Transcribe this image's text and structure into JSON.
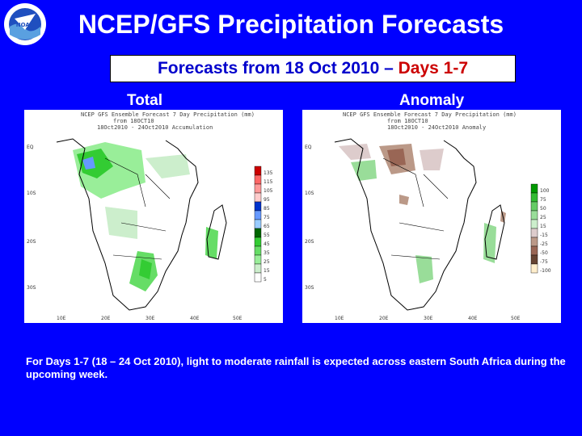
{
  "slide": {
    "title": "NCEP/GFS Precipitation Forecasts",
    "subtitle_prefix": "Forecasts from 18 Oct 2010 – ",
    "subtitle_highlight": "Days 1-7",
    "caption": "For Days 1-7 (18 – 24 Oct 2010), light to moderate rainfall is expected across eastern South Africa during the upcoming week.",
    "logo_text": "NOAA"
  },
  "panels": {
    "total": {
      "label": "Total",
      "map_title_1": "NCEP GFS Ensemble Forecast 7 Day Precipitation (mm)",
      "map_title_2": "from 18OCT10",
      "map_title_3": "18Oct2010 - 24Oct2010 Accumulation",
      "legend": [
        "135",
        "115",
        "105",
        "95",
        "85",
        "75",
        "65",
        "55",
        "45",
        "35",
        "25",
        "15",
        "5"
      ],
      "legend_colors": [
        "#cc0000",
        "#ff6666",
        "#ff9999",
        "#ffcccc",
        "#0033cc",
        "#6699ff",
        "#99ccff",
        "#006600",
        "#33cc33",
        "#66dd66",
        "#99ee99",
        "#cceecc",
        "#ffffff"
      ]
    },
    "anomaly": {
      "label": "Anomaly",
      "map_title_1": "NCEP GFS Ensemble Forecast 7 Day Precipitation (mm)",
      "map_title_2": "from 18OCT10",
      "map_title_3": "18Oct2010 - 24Oct2010 Anomaly",
      "legend": [
        "100",
        "75",
        "50",
        "25",
        "15",
        "-15",
        "-25",
        "-50",
        "-75",
        "-100"
      ],
      "legend_colors": [
        "#009900",
        "#33bb33",
        "#66cc66",
        "#99dd99",
        "#cceecc",
        "#ddcccc",
        "#bb9988",
        "#996655",
        "#664433",
        "#ffeecc"
      ]
    },
    "lat_labels": [
      "EQ",
      "10S",
      "20S",
      "30S"
    ],
    "lon_labels": [
      "10E",
      "20E",
      "30E",
      "40E",
      "50E"
    ]
  }
}
